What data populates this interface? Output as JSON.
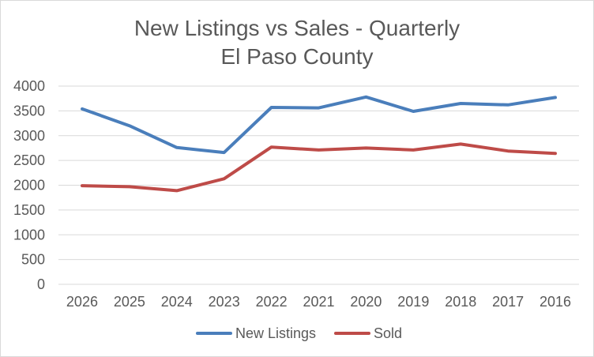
{
  "chart_data": {
    "type": "line",
    "title": [
      "New Listings vs Sales - Quarterly",
      "El Paso County"
    ],
    "xlabel": "",
    "ylabel": "",
    "categories": [
      "2026",
      "2025",
      "2024",
      "2023",
      "2022",
      "2021",
      "2020",
      "2019",
      "2018",
      "2017",
      "2016"
    ],
    "ylim": [
      0,
      4000
    ],
    "yticks": [
      0,
      500,
      1000,
      1500,
      2000,
      2500,
      3000,
      3500,
      4000
    ],
    "grid": true,
    "legend_position": "bottom",
    "series": [
      {
        "name": "New Listings",
        "color": "#4a7ebb",
        "values": [
          3540,
          3200,
          2760,
          2660,
          3570,
          3560,
          3780,
          3490,
          3650,
          3620,
          3770
        ]
      },
      {
        "name": "Sold",
        "color": "#be4b48",
        "values": [
          1990,
          1970,
          1890,
          2130,
          2770,
          2710,
          2750,
          2710,
          2830,
          2690,
          2640
        ]
      }
    ]
  }
}
